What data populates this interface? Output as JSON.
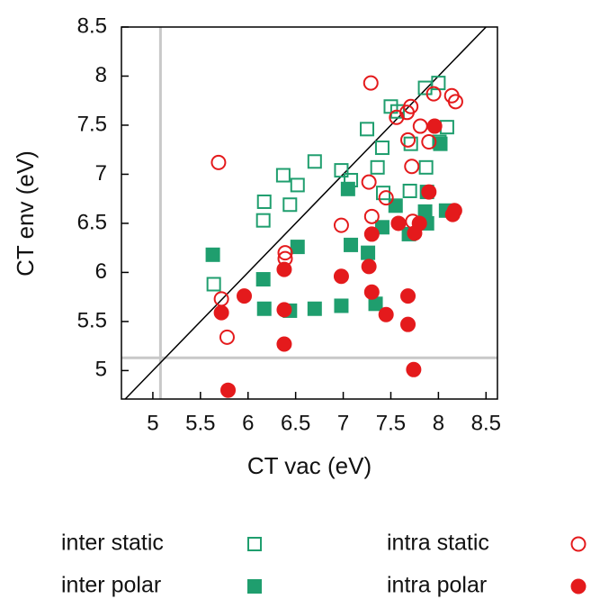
{
  "chart_data": {
    "type": "scatter",
    "xlabel": "CT vac (eV)",
    "ylabel": "CT env (eV)",
    "xlim": [
      4.67,
      8.62
    ],
    "ylim": [
      4.71,
      8.5
    ],
    "xticks": [
      5,
      5.5,
      6,
      6.5,
      7,
      7.5,
      8,
      8.5
    ],
    "yticks": [
      5,
      5.5,
      6,
      6.5,
      7,
      7.5,
      8,
      8.5
    ],
    "diagonal": true,
    "reference_lines": {
      "x": 5.08,
      "y": 5.13
    },
    "series": [
      {
        "name": "inter static",
        "color": "#1f9e6e",
        "marker": "square",
        "filled": false,
        "x": [
          5.64,
          6.16,
          6.17,
          6.37,
          6.44,
          6.52,
          6.7,
          6.98,
          7.08,
          7.25,
          7.36,
          7.41,
          7.5,
          7.57,
          7.42,
          7.7,
          7.71,
          7.86,
          8.0,
          8.09,
          7.87,
          8.01
        ],
        "y": [
          5.88,
          6.53,
          6.72,
          6.99,
          6.69,
          6.89,
          7.13,
          7.04,
          6.94,
          7.46,
          7.07,
          7.27,
          7.69,
          7.64,
          6.81,
          6.83,
          7.31,
          7.88,
          7.93,
          7.48,
          7.07,
          7.33
        ]
      },
      {
        "name": "inter polar",
        "color": "#1f9e6e",
        "marker": "square",
        "filled": true,
        "x": [
          5.63,
          6.16,
          6.17,
          6.44,
          6.52,
          6.7,
          6.98,
          7.05,
          7.08,
          7.26,
          7.34,
          7.41,
          7.55,
          7.69,
          7.86,
          7.88,
          7.88,
          8.02,
          8.08
        ],
        "y": [
          6.18,
          5.93,
          5.63,
          5.61,
          6.26,
          5.63,
          5.66,
          6.85,
          6.28,
          6.2,
          5.68,
          6.46,
          6.68,
          6.39,
          6.62,
          6.5,
          6.82,
          7.31,
          6.63
        ]
      },
      {
        "name": "intra static",
        "color": "#e41a1c",
        "marker": "circle",
        "filled": false,
        "x": [
          5.69,
          5.72,
          5.78,
          6.39,
          6.39,
          6.98,
          7.29,
          7.27,
          7.3,
          7.45,
          7.56,
          7.67,
          7.71,
          7.68,
          7.72,
          7.73,
          7.81,
          7.9,
          7.95,
          8.14,
          8.18
        ],
        "y": [
          7.12,
          5.73,
          5.34,
          6.2,
          6.14,
          6.48,
          7.93,
          6.92,
          6.57,
          6.76,
          7.58,
          7.63,
          7.69,
          7.35,
          7.08,
          6.52,
          7.49,
          7.33,
          7.82,
          7.8,
          7.74
        ]
      },
      {
        "name": "intra polar",
        "color": "#e41a1c",
        "marker": "circle",
        "filled": true,
        "x": [
          5.72,
          5.96,
          5.79,
          6.38,
          6.38,
          6.38,
          6.98,
          7.27,
          7.3,
          7.3,
          7.45,
          7.58,
          7.68,
          7.68,
          7.74,
          7.75,
          7.8,
          7.9,
          7.96,
          8.15,
          8.17
        ],
        "y": [
          5.59,
          5.76,
          4.8,
          6.03,
          5.62,
          5.27,
          5.96,
          6.06,
          5.8,
          6.39,
          5.57,
          6.5,
          5.76,
          5.47,
          5.01,
          6.4,
          6.5,
          6.82,
          7.49,
          6.59,
          6.63
        ]
      }
    ]
  }
}
